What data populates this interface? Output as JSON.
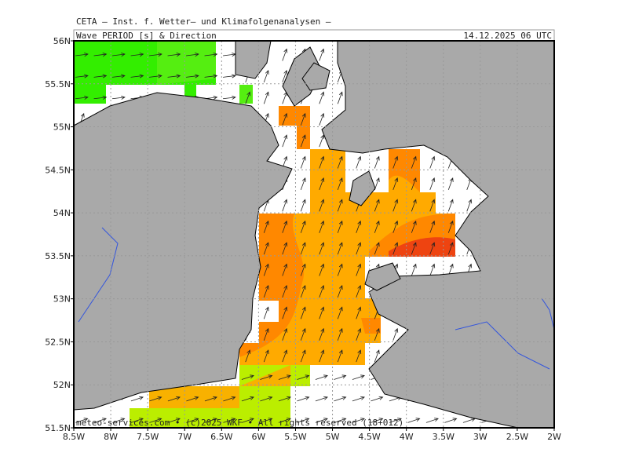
{
  "map": {
    "header": "CETA — Inst. f. Wetter— und Klimafolgenanalysen —",
    "title": "Wave PERIOD [s] & Direction",
    "timestamp": "14.12.2025 06 UTC",
    "credit": "meteo-services.com • (c)2025 WKF • All rights reserved (18+012)",
    "lon_ticks": [
      {
        "value": -8.5,
        "label": "8.5W"
      },
      {
        "value": -8,
        "label": "8W"
      },
      {
        "value": -7.5,
        "label": "7.5W"
      },
      {
        "value": -7,
        "label": "7W"
      },
      {
        "value": -6.5,
        "label": "6.5W"
      },
      {
        "value": -6,
        "label": "6W"
      },
      {
        "value": -5.5,
        "label": "5.5W"
      },
      {
        "value": -5,
        "label": "5W"
      },
      {
        "value": -4.5,
        "label": "4.5W"
      },
      {
        "value": -4,
        "label": "4W"
      },
      {
        "value": -3.5,
        "label": "3.5W"
      },
      {
        "value": -3,
        "label": "3W"
      },
      {
        "value": -2.5,
        "label": "2.5W"
      },
      {
        "value": -2,
        "label": "2W"
      }
    ],
    "lat_ticks": [
      {
        "value": 56,
        "label": "56N"
      },
      {
        "value": 55.5,
        "label": "55.5N"
      },
      {
        "value": 55,
        "label": "55N"
      },
      {
        "value": 54.5,
        "label": "54.5N"
      },
      {
        "value": 54,
        "label": "54N"
      },
      {
        "value": 53.5,
        "label": "53.5N"
      },
      {
        "value": 53,
        "label": "53N"
      },
      {
        "value": 52.5,
        "label": "52.5N"
      },
      {
        "value": 52,
        "label": "52N"
      },
      {
        "value": 51.5,
        "label": "51.5N"
      }
    ]
  }
}
